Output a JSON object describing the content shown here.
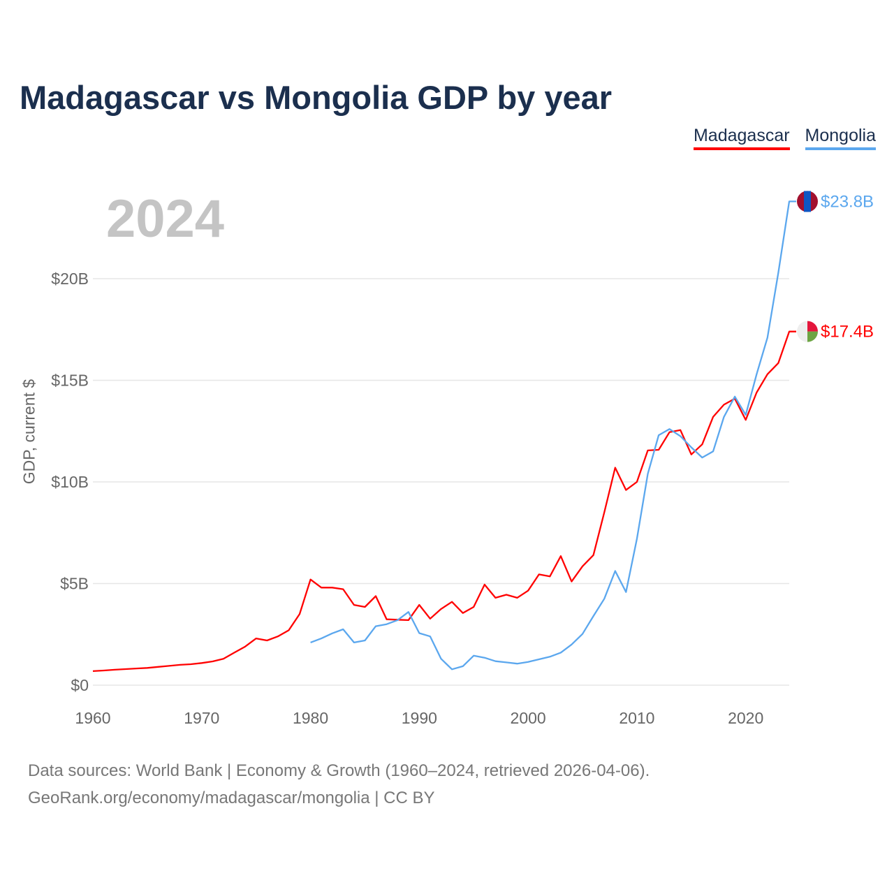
{
  "title": "Madagascar vs Mongolia GDP by year",
  "year_label": "2024",
  "legend": [
    {
      "name": "Madagascar",
      "color": "#ff0000"
    },
    {
      "name": "Mongolia",
      "color": "#5ba7ee"
    }
  ],
  "source_lines": [
    "Data sources: World Bank | Economy & Growth (1960–2024, retrieved 2026-04-06).",
    "GeoRank.org/economy/madagascar/mongolia | CC BY"
  ],
  "chart_data": {
    "type": "line",
    "title": "Madagascar vs Mongolia GDP by year",
    "xlabel": "",
    "ylabel": "GDP, current $",
    "xlim": [
      1960,
      2024
    ],
    "ylim": [
      0,
      25
    ],
    "x_ticks": [
      1960,
      1970,
      1980,
      1990,
      2000,
      2010,
      2020
    ],
    "x_tick_labels": [
      "1960",
      "1970",
      "1980",
      "1990",
      "2000",
      "2010",
      "2020"
    ],
    "y_ticks": [
      0,
      5,
      10,
      15,
      20
    ],
    "y_tick_labels": [
      "$0",
      "$5B",
      "$10B",
      "$15B",
      "$20B"
    ],
    "grid": true,
    "legend_position": "top-right",
    "series": [
      {
        "name": "Madagascar",
        "color": "#ff0000",
        "start_year": 1960,
        "end_label": "$17.4B",
        "values": [
          0.69,
          0.72,
          0.76,
          0.79,
          0.82,
          0.85,
          0.9,
          0.95,
          1.0,
          1.03,
          1.09,
          1.17,
          1.3,
          1.6,
          1.9,
          2.3,
          2.2,
          2.4,
          2.7,
          3.5,
          5.2,
          4.8,
          4.8,
          4.72,
          3.95,
          3.85,
          4.38,
          3.24,
          3.22,
          3.2,
          3.95,
          3.27,
          3.75,
          4.1,
          3.55,
          3.85,
          4.95,
          4.3,
          4.45,
          4.3,
          4.65,
          5.45,
          5.35,
          6.35,
          5.1,
          5.85,
          6.4,
          8.5,
          10.7,
          9.6,
          10.0,
          11.55,
          11.58,
          12.45,
          12.55,
          11.35,
          11.85,
          13.2,
          13.8,
          14.1,
          13.05,
          14.4,
          15.3,
          15.85,
          17.4
        ]
      },
      {
        "name": "Mongolia",
        "color": "#5ba7ee",
        "start_year": 1980,
        "end_label": "$23.8B",
        "values": [
          2.1,
          2.3,
          2.55,
          2.75,
          2.1,
          2.2,
          2.9,
          3.0,
          3.2,
          3.6,
          2.56,
          2.4,
          1.3,
          0.78,
          0.93,
          1.45,
          1.35,
          1.18,
          1.12,
          1.06,
          1.14,
          1.27,
          1.4,
          1.6,
          2.0,
          2.52,
          3.4,
          4.25,
          5.62,
          4.58,
          7.2,
          10.4,
          12.3,
          12.6,
          12.25,
          11.7,
          11.2,
          11.5,
          13.2,
          14.2,
          13.3,
          15.3,
          17.1,
          20.3,
          23.8
        ]
      }
    ]
  }
}
